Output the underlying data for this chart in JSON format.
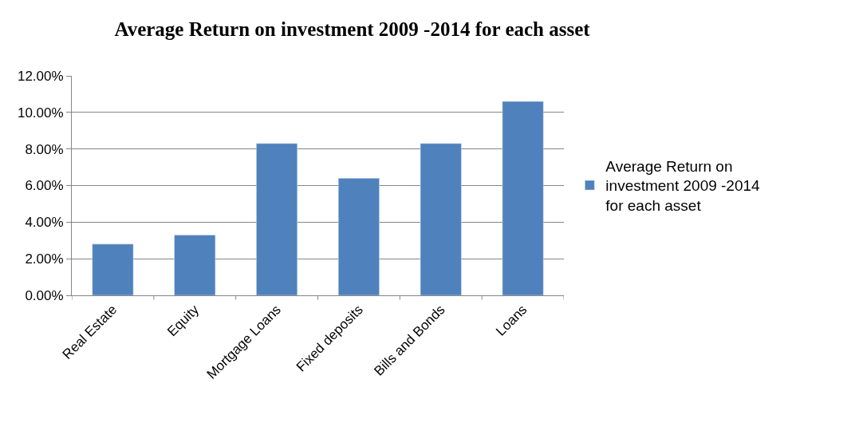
{
  "chart_data": {
    "type": "bar",
    "title": "Average Return on investment 2009 -2014 for each asset",
    "categories": [
      "Real Estate",
      "Equity",
      "Mortgage Loans",
      "Fixed deposits",
      "Bills and Bonds",
      "Loans"
    ],
    "series": [
      {
        "name": "Average Return on investment 2009 -2014 for each asset",
        "color": "#4f81bd",
        "values": [
          2.8,
          3.3,
          8.3,
          6.4,
          8.3,
          10.6
        ]
      }
    ],
    "ylim": [
      0,
      12
    ],
    "yticks": [
      {
        "value": 0,
        "label": "0.00%"
      },
      {
        "value": 2,
        "label": "2.00%"
      },
      {
        "value": 4,
        "label": "4.00%"
      },
      {
        "value": 6,
        "label": "6.00%"
      },
      {
        "value": 8,
        "label": "8.00%"
      },
      {
        "value": 10,
        "label": "10.00%"
      },
      {
        "value": 12,
        "label": "12.00%"
      }
    ],
    "grid": "y",
    "legend": "right"
  }
}
